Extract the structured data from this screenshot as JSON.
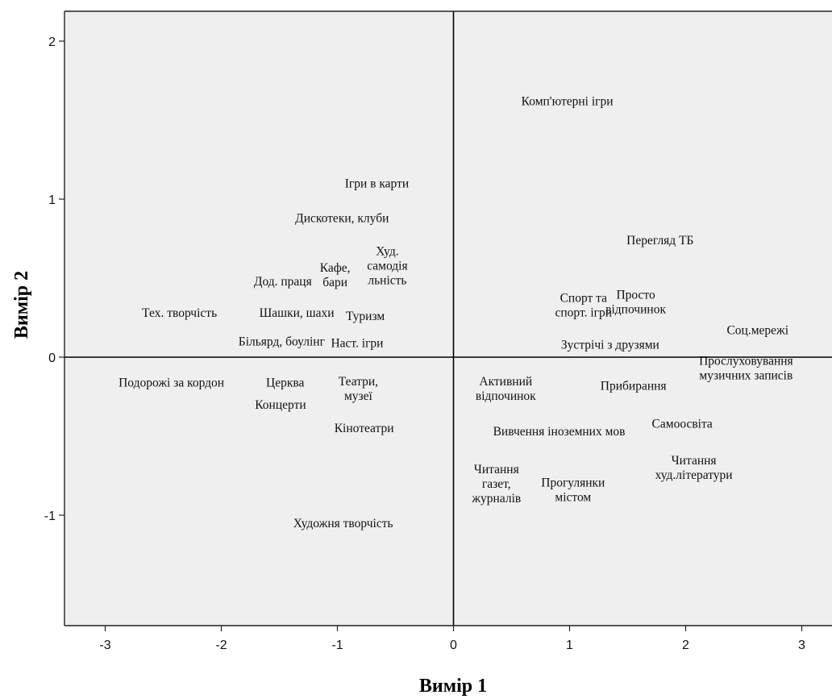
{
  "chart_data": {
    "type": "scatter",
    "title": "",
    "xlabel": "Вимір 1",
    "ylabel": "Вимір 2",
    "xlim": [
      -3.35,
      3.35
    ],
    "ylim": [
      -1.7,
      2.2
    ],
    "xticks": [
      -3,
      -2,
      -1,
      0,
      1,
      2,
      3
    ],
    "yticks": [
      -1,
      0,
      1,
      2
    ],
    "reference_lines": {
      "x": 0,
      "y": 0
    },
    "grid": false,
    "legend": "none",
    "colors": {
      "plot_background": "#efefef",
      "frame": "#222222",
      "reference_line": "#000000",
      "text": "#111111"
    },
    "points": [
      {
        "label": [
          "Комп'ютерні ігри"
        ],
        "x": 0.98,
        "y": 1.62
      },
      {
        "label": [
          "Ігри в карти"
        ],
        "x": -0.66,
        "y": 1.1
      },
      {
        "label": [
          "Дискотеки, клуби"
        ],
        "x": -0.96,
        "y": 0.88
      },
      {
        "label": [
          "Перегляд ТБ"
        ],
        "x": 1.78,
        "y": 0.74
      },
      {
        "label": [
          "Худ.",
          "самодія",
          "льність"
        ],
        "x": -0.57,
        "y": 0.58
      },
      {
        "label": [
          "Кафе,",
          "бари"
        ],
        "x": -1.02,
        "y": 0.52
      },
      {
        "label": [
          "Дод. праця"
        ],
        "x": -1.47,
        "y": 0.48
      },
      {
        "label": [
          "Спорт та",
          "спорт. ігри"
        ],
        "x": 1.12,
        "y": 0.33
      },
      {
        "label": [
          "Просто",
          "відпочинок"
        ],
        "x": 1.57,
        "y": 0.35
      },
      {
        "label": [
          "Тех. творчість"
        ],
        "x": -2.36,
        "y": 0.28
      },
      {
        "label": [
          "Шашки, шахи"
        ],
        "x": -1.35,
        "y": 0.28
      },
      {
        "label": [
          "Туризм"
        ],
        "x": -0.76,
        "y": 0.26
      },
      {
        "label": [
          "Соц.мережі"
        ],
        "x": 2.62,
        "y": 0.17
      },
      {
        "label": [
          "Більярд, боулінг"
        ],
        "x": -1.48,
        "y": 0.1
      },
      {
        "label": [
          "Наст. ігри"
        ],
        "x": -0.83,
        "y": 0.09
      },
      {
        "label": [
          "Зустрічі з друзями"
        ],
        "x": 1.35,
        "y": 0.08
      },
      {
        "label": [
          "Прослуховування",
          "музичних записів"
        ],
        "x": 2.52,
        "y": -0.07
      },
      {
        "label": [
          "Подорожі за кордон"
        ],
        "x": -2.43,
        "y": -0.16
      },
      {
        "label": [
          "Церква"
        ],
        "x": -1.45,
        "y": -0.16
      },
      {
        "label": [
          "Театри,",
          "музеї"
        ],
        "x": -0.82,
        "y": -0.2
      },
      {
        "label": [
          "Активний",
          "відпочинок"
        ],
        "x": 0.45,
        "y": -0.2
      },
      {
        "label": [
          "Прибирання"
        ],
        "x": 1.55,
        "y": -0.18
      },
      {
        "label": [
          "Концерти"
        ],
        "x": -1.49,
        "y": -0.3
      },
      {
        "label": [
          "Кінотеатри"
        ],
        "x": -0.77,
        "y": -0.45
      },
      {
        "label": [
          "Самоосвіта"
        ],
        "x": 1.97,
        "y": -0.42
      },
      {
        "label": [
          "Вивчення іноземних мов"
        ],
        "x": 0.91,
        "y": -0.47
      },
      {
        "label": [
          "Читання",
          "газет,",
          "журналів"
        ],
        "x": 0.37,
        "y": -0.8
      },
      {
        "label": [
          "Прогулянки",
          "містом"
        ],
        "x": 1.03,
        "y": -0.84
      },
      {
        "label": [
          "Читання",
          "худ.літератури"
        ],
        "x": 2.07,
        "y": -0.7
      },
      {
        "label": [
          "Художня творчість"
        ],
        "x": -0.95,
        "y": -1.05
      }
    ]
  }
}
